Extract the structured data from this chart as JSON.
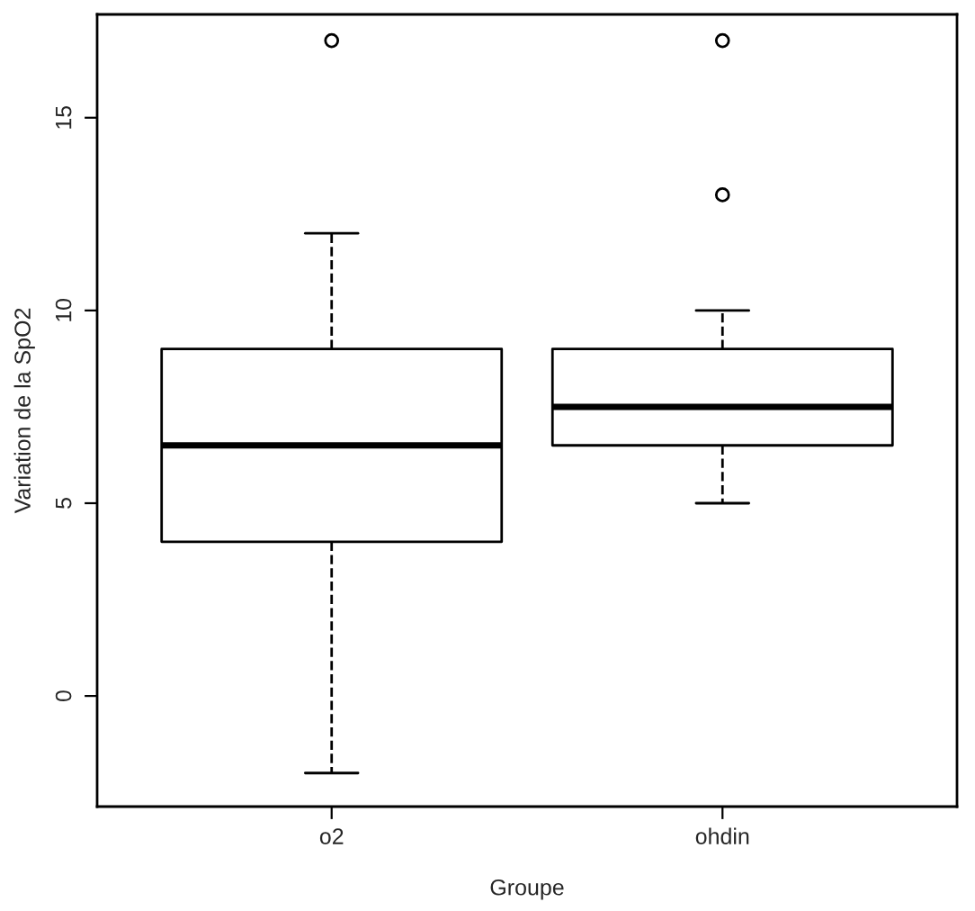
{
  "chart_data": {
    "type": "box",
    "xlabel": "Groupe",
    "ylabel": "Variation de la SpO2",
    "categories": [
      "o2",
      "ohdin"
    ],
    "boxes": [
      {
        "low": -2,
        "q1": 4,
        "median": 6.5,
        "q3": 9,
        "high": 12,
        "outliers": [
          17
        ]
      },
      {
        "low": 5,
        "q1": 6.5,
        "median": 7.5,
        "q3": 9,
        "high": 10,
        "outliers": [
          13,
          17
        ]
      }
    ],
    "ylim": [
      -2.87,
      17.68
    ],
    "yticks": [
      0,
      5,
      10,
      15
    ],
    "grid": false,
    "line_style": "dashed"
  }
}
